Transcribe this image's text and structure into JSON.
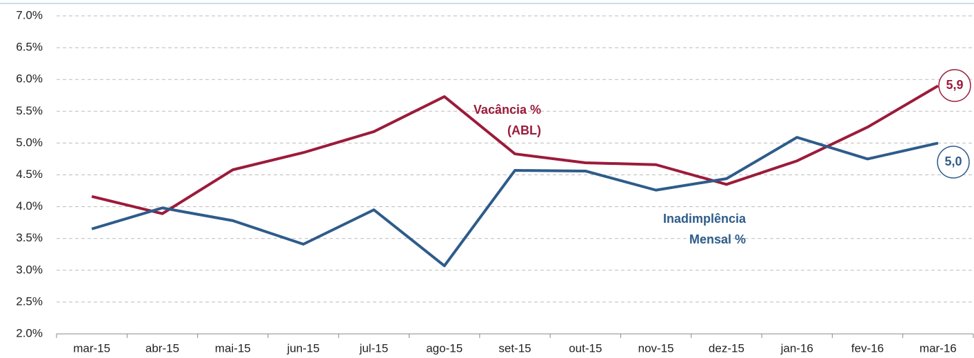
{
  "chart_data": {
    "type": "line",
    "categories": [
      "mar-15",
      "abr-15",
      "mai-15",
      "jun-15",
      "jul-15",
      "ago-15",
      "set-15",
      "out-15",
      "nov-15",
      "dez-15",
      "jan-16",
      "fev-16",
      "mar-16"
    ],
    "series": [
      {
        "name": "Vacância % (ABL)",
        "color": "#9b1b3a",
        "values": [
          4.16,
          3.89,
          4.58,
          4.85,
          5.18,
          5.73,
          4.83,
          4.69,
          4.66,
          4.35,
          4.72,
          5.25,
          5.9
        ],
        "end_label": "5,9"
      },
      {
        "name": "Inadimplência Mensal %",
        "color": "#2e5c8a",
        "values": [
          3.65,
          3.98,
          3.78,
          3.41,
          3.95,
          3.07,
          4.57,
          4.56,
          4.26,
          4.44,
          5.09,
          4.75,
          5.0
        ],
        "end_label": "5,0"
      }
    ],
    "ylim": [
      2,
      7
    ],
    "yticks": [
      {
        "value": 2,
        "label": "2.0%"
      },
      {
        "value": 2.5,
        "label": "2.5%"
      },
      {
        "value": 3,
        "label": "3.0%"
      },
      {
        "value": 3.5,
        "label": "3.5%"
      },
      {
        "value": 4,
        "label": "4.0%"
      },
      {
        "value": 4.5,
        "label": "4.5%"
      },
      {
        "value": 5,
        "label": "5.0%"
      },
      {
        "value": 5.5,
        "label": "5.5%"
      },
      {
        "value": 6,
        "label": "6.0%"
      },
      {
        "value": 6.5,
        "label": "6.5%"
      },
      {
        "value": 7,
        "label": "7.0%"
      }
    ],
    "grid": true
  }
}
